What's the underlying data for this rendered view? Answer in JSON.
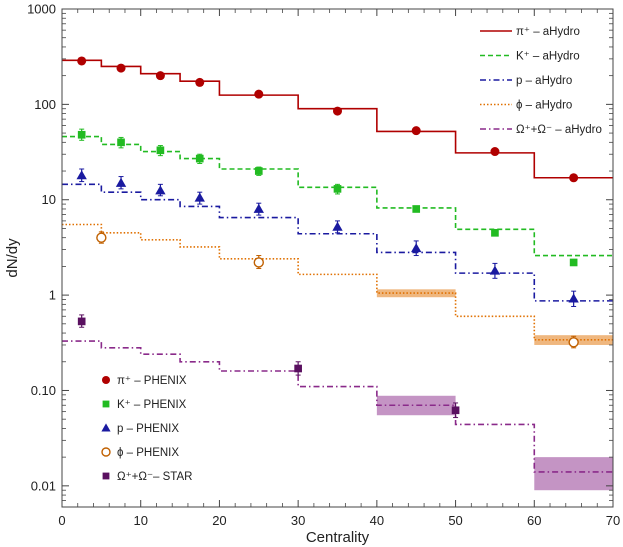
{
  "chart_data": {
    "type": "line",
    "xlabel": "Centrality",
    "ylabel": "dN/dy",
    "xlim": [
      0,
      70
    ],
    "ylim": [
      0.006,
      1000
    ],
    "y_scale": "log",
    "grid": false,
    "x_ticks": [
      0,
      10,
      20,
      30,
      40,
      50,
      60,
      70
    ],
    "y_ticks": [
      0.01,
      0.1,
      1,
      10,
      100,
      1000
    ],
    "y_tick_labels": [
      "0.01",
      "0.10",
      "1",
      "10",
      "100",
      "1000"
    ],
    "bin_edges": [
      0,
      5,
      10,
      15,
      20,
      30,
      40,
      50,
      60,
      70
    ],
    "hydro_series": [
      {
        "name": "π⁺ – aHydro",
        "color": "#b00000",
        "dash": "solid",
        "values": [
          290,
          250,
          210,
          175,
          125,
          90,
          52,
          31,
          17
        ]
      },
      {
        "name": "K⁺ – aHydro",
        "color": "#22bb22",
        "dash": "dashed",
        "values": [
          46,
          38,
          32,
          27,
          21,
          13.5,
          8.2,
          4.9,
          2.6
        ]
      },
      {
        "name": "p – aHydro",
        "color": "#1a1aa0",
        "dash": "dash-dot",
        "values": [
          14.5,
          12,
          10,
          8.5,
          6.5,
          4.4,
          2.8,
          1.7,
          0.87
        ]
      },
      {
        "name": "ϕ – aHydro",
        "color": "#e07000",
        "dash": "dotted",
        "values": [
          5.5,
          4.5,
          3.8,
          3.2,
          2.4,
          1.65,
          1.05,
          0.6,
          0.34
        ],
        "bands": [
          null,
          null,
          null,
          null,
          null,
          null,
          [
            0.95,
            1.15
          ],
          null,
          [
            0.3,
            0.38
          ]
        ]
      },
      {
        "name": "Ω⁺+Ω⁻ – aHydro",
        "color": "#8a2a8a",
        "dash": "dash-dot",
        "values": [
          0.33,
          0.28,
          0.24,
          0.2,
          0.16,
          0.11,
          0.07,
          0.044,
          0.014
        ],
        "bands": [
          null,
          null,
          null,
          null,
          null,
          null,
          [
            0.055,
            0.088
          ],
          null,
          [
            0.009,
            0.02
          ]
        ]
      }
    ],
    "data_series": [
      {
        "name": "π⁺ – PHENIX",
        "color": "#b00000",
        "marker": "circle",
        "points": [
          {
            "x": 2.5,
            "y": 285
          },
          {
            "x": 7.5,
            "y": 240
          },
          {
            "x": 12.5,
            "y": 200
          },
          {
            "x": 17.5,
            "y": 170
          },
          {
            "x": 25,
            "y": 128
          },
          {
            "x": 35,
            "y": 85
          },
          {
            "x": 45,
            "y": 53
          },
          {
            "x": 55,
            "y": 32
          },
          {
            "x": 65,
            "y": 17
          }
        ]
      },
      {
        "name": "K⁺ – PHENIX",
        "color": "#22bb22",
        "marker": "square",
        "points": [
          {
            "x": 2.5,
            "y": 48,
            "err": [
              42,
              55
            ]
          },
          {
            "x": 7.5,
            "y": 40,
            "err": [
              35,
              45
            ]
          },
          {
            "x": 12.5,
            "y": 33,
            "err": [
              29,
              37
            ]
          },
          {
            "x": 17.5,
            "y": 27,
            "err": [
              24,
              30
            ]
          },
          {
            "x": 25,
            "y": 20,
            "err": [
              18,
              22
            ]
          },
          {
            "x": 35,
            "y": 13,
            "err": [
              11.5,
              14.5
            ]
          },
          {
            "x": 45,
            "y": 8.0,
            "err": [
              7.5,
              8.6
            ]
          },
          {
            "x": 55,
            "y": 4.5,
            "err": [
              4.2,
              4.8
            ]
          },
          {
            "x": 65,
            "y": 2.2,
            "err": [
              2.05,
              2.35
            ]
          }
        ]
      },
      {
        "name": "p – PHENIX",
        "color": "#1a1aa0",
        "marker": "triangle",
        "points": [
          {
            "x": 2.5,
            "y": 18,
            "err": [
              15.5,
              21
            ]
          },
          {
            "x": 7.5,
            "y": 15,
            "err": [
              13,
              17.5
            ]
          },
          {
            "x": 12.5,
            "y": 12.5,
            "err": [
              11,
              14.5
            ]
          },
          {
            "x": 17.5,
            "y": 10.5,
            "err": [
              9,
              12
            ]
          },
          {
            "x": 25,
            "y": 8.0,
            "err": [
              6.9,
              9.2
            ]
          },
          {
            "x": 35,
            "y": 5.2,
            "err": [
              4.5,
              6.0
            ]
          },
          {
            "x": 45,
            "y": 3.1,
            "err": [
              2.6,
              3.7
            ]
          },
          {
            "x": 55,
            "y": 1.8,
            "err": [
              1.5,
              2.15
            ]
          },
          {
            "x": 65,
            "y": 0.92,
            "err": [
              0.76,
              1.1
            ]
          }
        ]
      },
      {
        "name": "ϕ – PHENIX",
        "color": "#c06000",
        "marker": "open-circle",
        "points": [
          {
            "x": 5,
            "y": 4.0,
            "err": [
              3.5,
              4.6
            ]
          },
          {
            "x": 25,
            "y": 2.2,
            "err": [
              1.9,
              2.6
            ]
          },
          {
            "x": 65,
            "y": 0.32,
            "err": [
              0.28,
              0.37
            ]
          }
        ]
      },
      {
        "name": "Ω⁺+Ω⁻– STAR",
        "color": "#5a1060",
        "marker": "square",
        "points": [
          {
            "x": 2.5,
            "y": 0.53,
            "err": [
              0.46,
              0.62
            ]
          },
          {
            "x": 30,
            "y": 0.17,
            "err": [
              0.145,
              0.2
            ]
          },
          {
            "x": 50,
            "y": 0.062,
            "err": [
              0.052,
              0.074
            ]
          }
        ]
      }
    ]
  }
}
